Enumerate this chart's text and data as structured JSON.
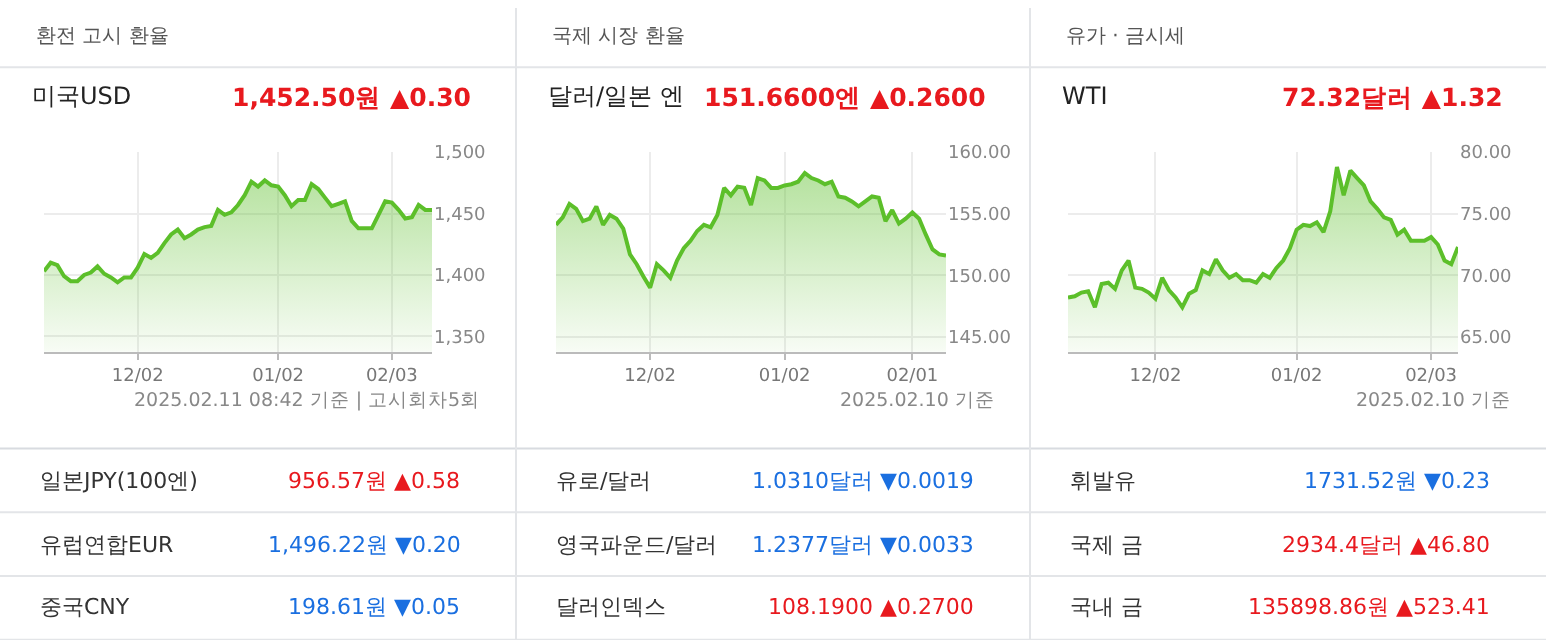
{
  "chart_data": [
    {
      "type": "other",
      "title": "환전 고시 환율",
      "categories": [
        "일본JPY(100엔)",
        "유럽연합EUR",
        "중국CNY"
      ],
      "value_labels": [
        "956.57원 ▲0.58",
        "1,496.22원 ▼0.20",
        "198.61원 ▼0.05"
      ],
      "colors": [
        "#e8191e",
        "#1a6fe0",
        "#1a6fe0"
      ]
    },
    {
      "type": "other",
      "title": "국제 시장 환율",
      "categories": [
        "유로/달러",
        "영국파운드/달러",
        "달러인덱스"
      ],
      "value_labels": [
        "1.0310달러 ▼0.0019",
        "1.2377달러 ▼0.0033",
        "108.1900 ▲0.2700"
      ],
      "colors": [
        "#1a6fe0",
        "#1a6fe0",
        "#e8191e"
      ]
    },
    {
      "type": "other",
      "title": "유가 · 금시세",
      "categories": [
        "휘발유",
        "국제 금",
        "국내 금"
      ],
      "value_labels": [
        "1731.52원 ▼0.23",
        "2934.4달러 ▲46.80",
        "135898.86원 ▲523.41"
      ],
      "colors": [
        "#1a6fe0",
        "#e8191e",
        "#e8191e"
      ]
    },
    {
      "type": "area",
      "title": "미국USD",
      "subtitle": "1,452.50원 ▲0.30",
      "grid": true,
      "ylim": [
        1337.6,
        1500
      ],
      "yticks": [
        {
          "value": 1350,
          "label": "1,350"
        },
        {
          "value": 1400,
          "label": "1,400"
        },
        {
          "value": 1450,
          "label": "1,450"
        },
        {
          "value": 1500,
          "label": "1,500"
        }
      ],
      "categories": [
        null,
        null,
        null,
        null,
        null,
        null,
        null,
        null,
        null,
        null,
        null,
        null,
        null,
        null,
        "12/02",
        null,
        null,
        null,
        null,
        null,
        null,
        null,
        null,
        null,
        null,
        null,
        null,
        null,
        null,
        null,
        null,
        null,
        null,
        null,
        null,
        "01/02",
        null,
        null,
        null,
        null,
        null,
        null,
        null,
        null,
        null,
        null,
        null,
        null,
        null,
        null,
        null,
        null,
        "02/03",
        null,
        null,
        null,
        null,
        null,
        null
      ],
      "series": [
        {
          "color": "#5cbf2a",
          "values": [
            1403,
            1410,
            1408,
            1399,
            1395,
            1395,
            1400,
            1402,
            1407,
            1401,
            1398,
            1394,
            1398,
            1398,
            1406,
            1417,
            1414,
            1418,
            1426,
            1433,
            1437,
            1430,
            1433,
            1437,
            1439,
            1440,
            1453,
            1449,
            1451,
            1457,
            1465,
            1476,
            1472,
            1477,
            1473,
            1472,
            1465,
            1456,
            1461,
            1461,
            1474,
            1470,
            1463,
            1456,
            1458,
            1460,
            1444,
            1438,
            1438,
            1438,
            1449,
            1460,
            1459,
            1453,
            1446,
            1447,
            1457,
            1453,
            1453
          ]
        }
      ],
      "annotations": [
        "2025.02.11 08:42 기준 | 고시회차5회"
      ]
    },
    {
      "type": "area",
      "title": "달러/일본 엔",
      "subtitle": "151.6600엔 ▲0.2600",
      "grid": true,
      "ylim": [
        143.8,
        160
      ],
      "yticks": [
        {
          "value": 145,
          "label": "145.00"
        },
        {
          "value": 150,
          "label": "150.00"
        },
        {
          "value": 155,
          "label": "155.00"
        },
        {
          "value": 160,
          "label": "160.00"
        }
      ],
      "categories": [
        null,
        null,
        null,
        null,
        null,
        null,
        null,
        null,
        null,
        null,
        null,
        null,
        null,
        null,
        "12/02",
        null,
        null,
        null,
        null,
        null,
        null,
        null,
        null,
        null,
        null,
        null,
        null,
        null,
        null,
        null,
        null,
        null,
        null,
        null,
        "01/02",
        null,
        null,
        null,
        null,
        null,
        null,
        null,
        null,
        null,
        null,
        null,
        null,
        null,
        null,
        null,
        null,
        null,
        null,
        "02/01",
        null,
        null,
        null,
        null,
        null
      ],
      "series": [
        {
          "color": "#5cbf2a",
          "values": [
            154.1,
            154.7,
            155.8,
            155.4,
            154.4,
            154.6,
            155.6,
            154.1,
            154.9,
            154.6,
            153.8,
            151.7,
            150.9,
            149.9,
            149.0,
            150.9,
            150.4,
            149.8,
            151.2,
            152.2,
            152.8,
            153.6,
            154.1,
            153.9,
            154.9,
            157.1,
            156.5,
            157.2,
            157.1,
            155.7,
            157.9,
            157.7,
            157.1,
            157.1,
            157.3,
            157.4,
            157.6,
            158.3,
            157.9,
            157.7,
            157.4,
            157.6,
            156.4,
            156.3,
            156.0,
            155.6,
            156.0,
            156.4,
            156.3,
            154.4,
            155.3,
            154.2,
            154.6,
            155.1,
            154.6,
            153.3,
            152.1,
            151.7,
            151.6
          ]
        }
      ],
      "annotations": [
        "2025.02.10 기준"
      ]
    },
    {
      "type": "area",
      "title": "WTI",
      "subtitle": "72.32달러 ▲1.32",
      "grid": true,
      "ylim": [
        63.8,
        80
      ],
      "yticks": [
        {
          "value": 65,
          "label": "65.00"
        },
        {
          "value": 70,
          "label": "70.00"
        },
        {
          "value": 75,
          "label": "75.00"
        },
        {
          "value": 80,
          "label": "80.00"
        }
      ],
      "categories": [
        null,
        null,
        null,
        null,
        null,
        null,
        null,
        null,
        null,
        null,
        null,
        null,
        null,
        "12/02",
        null,
        null,
        null,
        null,
        null,
        null,
        null,
        null,
        null,
        null,
        null,
        null,
        null,
        null,
        null,
        null,
        null,
        null,
        null,
        null,
        "01/02",
        null,
        null,
        null,
        null,
        null,
        null,
        null,
        null,
        null,
        null,
        null,
        null,
        null,
        null,
        null,
        null,
        null,
        null,
        null,
        "02/03",
        null,
        null,
        null,
        null
      ],
      "series": [
        {
          "color": "#5cbf2a",
          "values": [
            68.2,
            68.3,
            68.6,
            68.7,
            67.4,
            69.3,
            69.4,
            68.9,
            70.4,
            71.2,
            69.0,
            68.9,
            68.6,
            68.1,
            69.8,
            68.8,
            68.2,
            67.4,
            68.5,
            68.8,
            70.4,
            70.1,
            71.3,
            70.4,
            69.8,
            70.1,
            69.6,
            69.6,
            69.4,
            70.1,
            69.8,
            70.6,
            71.2,
            72.2,
            73.7,
            74.1,
            74.0,
            74.3,
            73.5,
            75.2,
            78.8,
            76.5,
            78.5,
            77.9,
            77.3,
            76.0,
            75.4,
            74.7,
            74.5,
            73.3,
            73.7,
            72.8,
            72.8,
            72.8,
            73.1,
            72.5,
            71.2,
            70.9,
            72.3
          ]
        }
      ],
      "annotations": [
        "2025.02.10 기준"
      ]
    }
  ]
}
